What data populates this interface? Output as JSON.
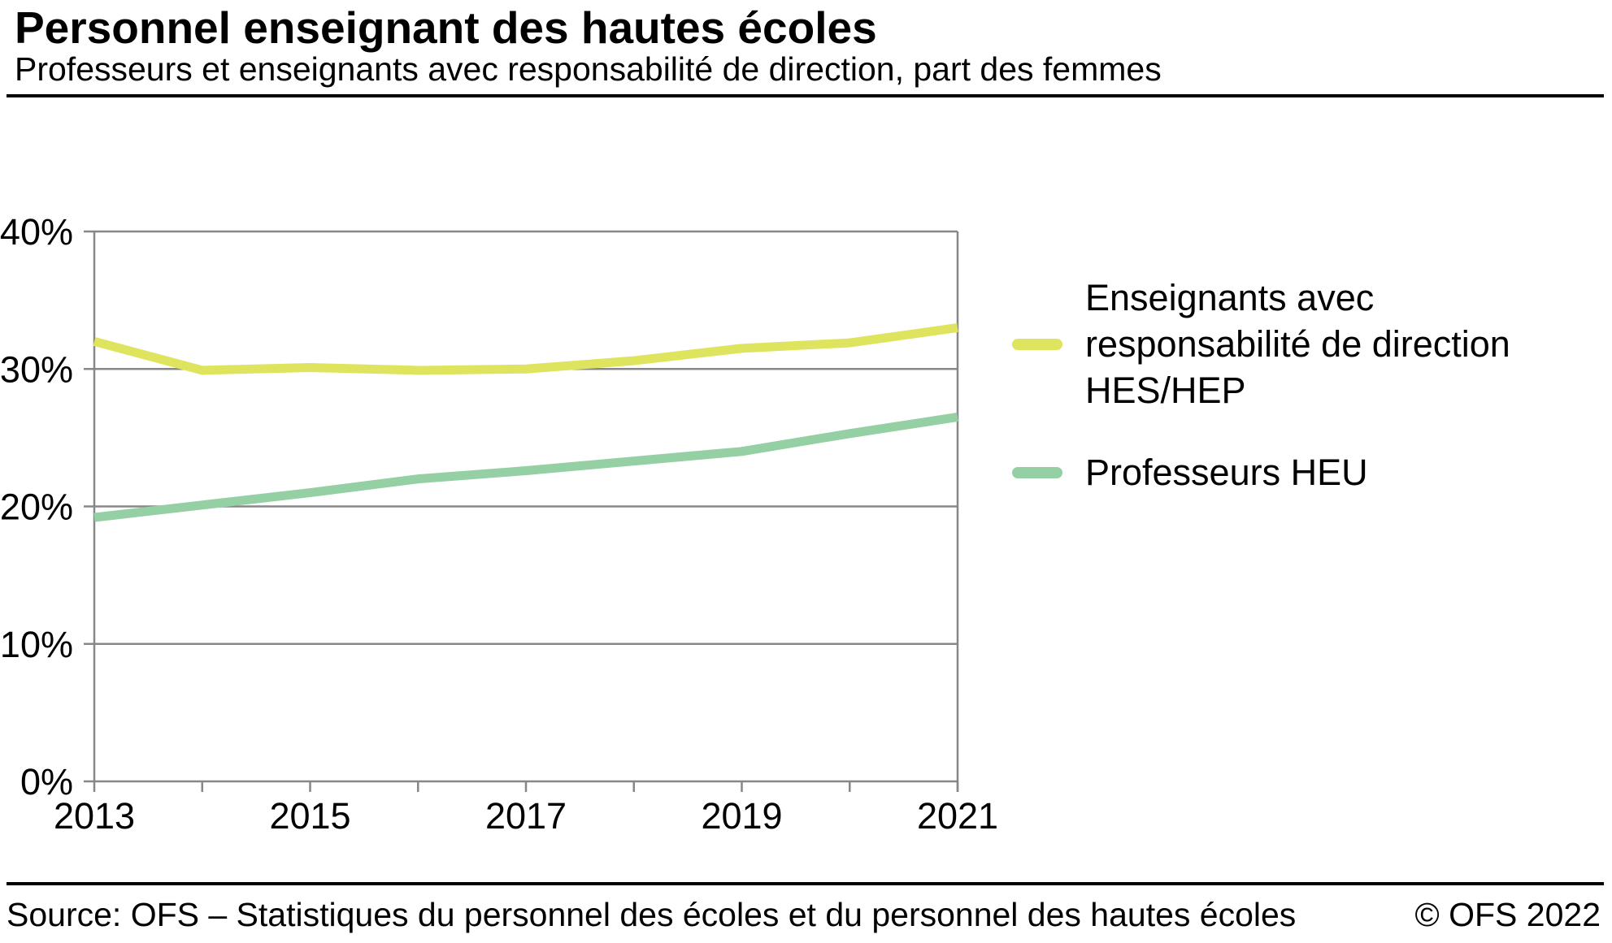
{
  "header": {
    "title": "Personnel enseignant des hautes écoles",
    "subtitle": "Professeurs et enseignants avec responsabilité de direction, part des femmes"
  },
  "chart_data": {
    "type": "line",
    "x": [
      2013,
      2014,
      2015,
      2016,
      2017,
      2018,
      2019,
      2020,
      2021
    ],
    "x_labeled_every": 2,
    "x_tick_labels": [
      "2013",
      "2015",
      "2017",
      "2019",
      "2021"
    ],
    "ylim": [
      0,
      40
    ],
    "y_ticks": [
      0,
      10,
      20,
      30,
      40
    ],
    "y_tick_suffix": "%",
    "grid": true,
    "legend_position": "right",
    "series": [
      {
        "name": "Enseignants avec responsabilité de direction HES/HEP",
        "legend_lines": [
          "Enseignants avec",
          "responsabilité de direction",
          "HES/HEP"
        ],
        "color": "#dfe45f",
        "values": [
          32.0,
          29.9,
          30.1,
          29.9,
          30.0,
          30.6,
          31.5,
          31.9,
          33.0
        ]
      },
      {
        "name": "Professeurs HEU",
        "legend_lines": [
          "Professeurs HEU"
        ],
        "color": "#94d0a4",
        "values": [
          19.2,
          20.1,
          21.0,
          22.0,
          22.6,
          23.3,
          24.0,
          25.3,
          26.5
        ]
      }
    ]
  },
  "colors": {
    "grid": "#878787",
    "axis": "#878787",
    "text": "#000000"
  },
  "footer": {
    "source": "Source: OFS – Statistiques du personnel des écoles et du personnel des hautes écoles",
    "copyright": "© OFS 2022"
  }
}
